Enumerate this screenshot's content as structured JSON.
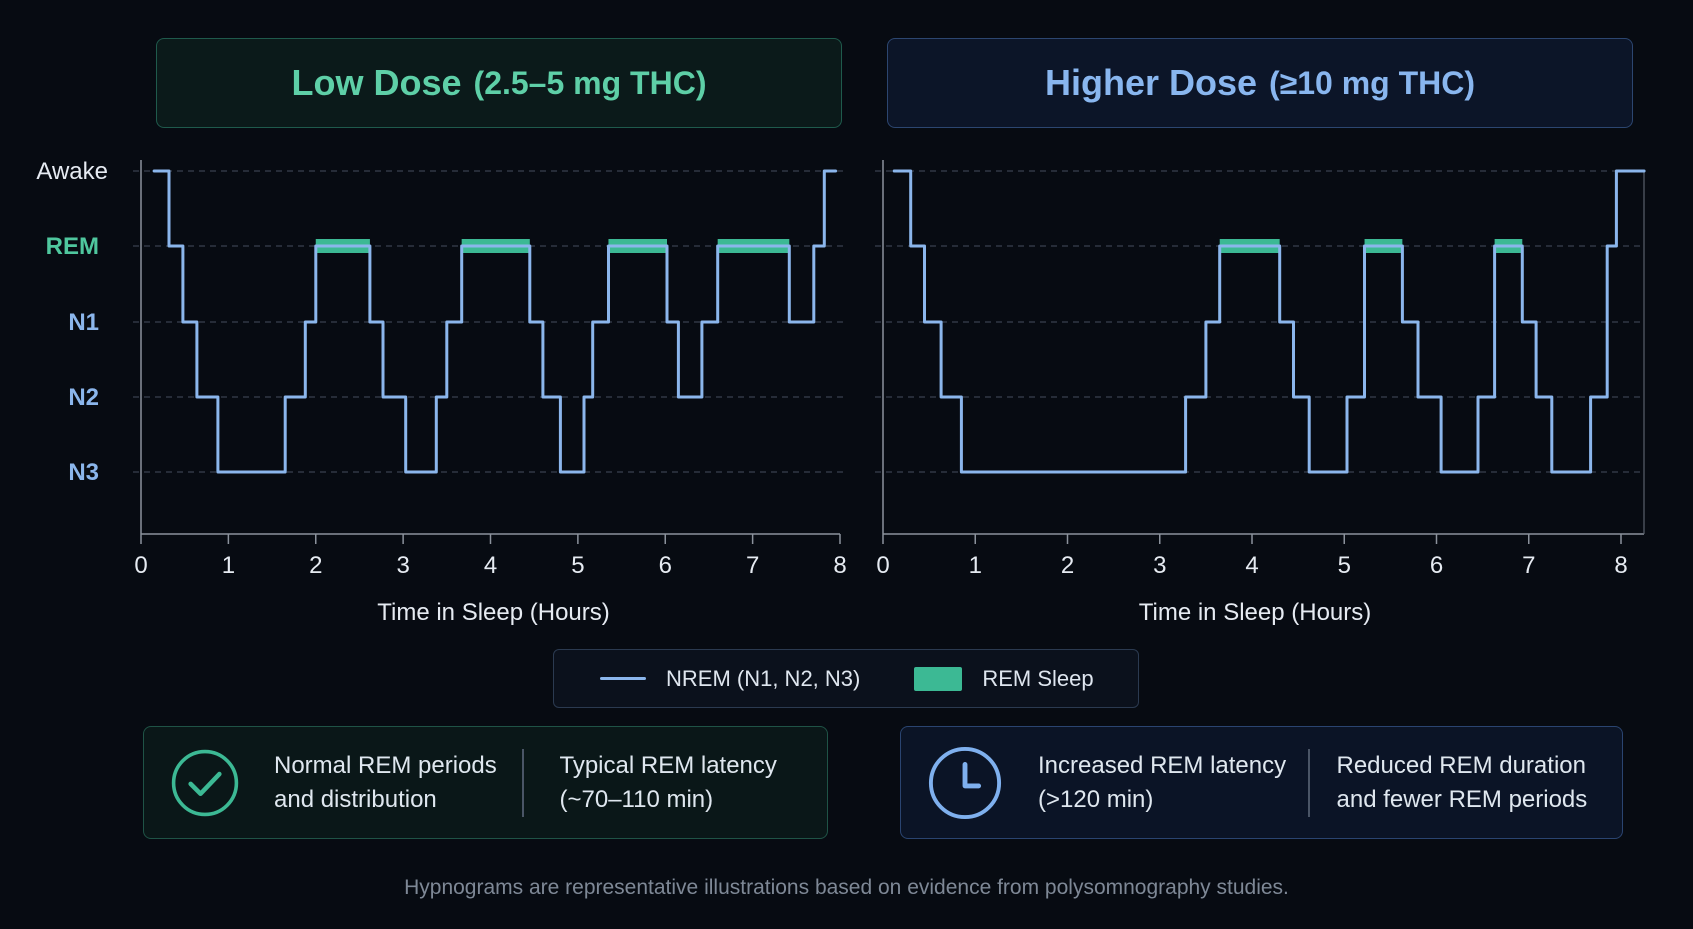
{
  "panels": [
    {
      "title": "Low Dose",
      "subtitle": "(2.5–5 mg THC)",
      "accent": "#5ecfa7"
    },
    {
      "title": "Higher Dose",
      "subtitle": "(≥10 mg THC)",
      "accent": "#89b6ef"
    }
  ],
  "legend": {
    "nrem_label": "NREM (N1, N2, N3)",
    "rem_label": "REM Sleep"
  },
  "notes": {
    "left": {
      "icon": "check-circle-icon",
      "col1": "Normal REM periods and distribution",
      "col2": "Typical REM latency (~70–110 min)"
    },
    "right": {
      "icon": "clock-icon",
      "col1": "Increased REM latency (>120 min)",
      "col2": "Reduced REM duration and fewer REM periods"
    }
  },
  "footer": "Hypnograms are representative illustrations based on evidence from polysomnography studies.",
  "colors": {
    "nrem": "#8bb6ec",
    "rem": "#3cb994",
    "rem_label": "#4fc79e",
    "stage_label": "#8bb6ec",
    "awake_label": "#e6ebf2"
  },
  "chart_data": [
    {
      "type": "line",
      "title": "Low Dose (2.5–5 mg THC)",
      "xlabel": "Time in Sleep (Hours)",
      "ylabel": "",
      "xlim": [
        0,
        8
      ],
      "xticks": [
        "0",
        "1",
        "2",
        "3",
        "4",
        "5",
        "6",
        "7",
        "8"
      ],
      "yticks": [
        "Awake",
        "REM",
        "N1",
        "N2",
        "N3"
      ],
      "grid": true,
      "series": [
        {
          "name": "NREM (N1, N2, N3)",
          "x": [
            0.15,
            0.32,
            0.32,
            0.48,
            0.48,
            0.64,
            0.64,
            0.88,
            0.88,
            1.65,
            1.65,
            1.88,
            1.88,
            2.0,
            2.0,
            2.62,
            2.62,
            2.77,
            2.77,
            3.03,
            3.03,
            3.38,
            3.38,
            3.5,
            3.5,
            3.67,
            3.67,
            4.45,
            4.45,
            4.6,
            4.6,
            4.8,
            4.8,
            5.07,
            5.07,
            5.17,
            5.17,
            5.35,
            5.35,
            6.02,
            6.02,
            6.15,
            6.15,
            6.42,
            6.42,
            6.6,
            6.6,
            7.42,
            7.42,
            7.7,
            7.7,
            7.82,
            7.82,
            7.95
          ],
          "y": [
            "Awake",
            "Awake",
            "REM",
            "REM",
            "N1",
            "N1",
            "N2",
            "N2",
            "N3",
            "N3",
            "N2",
            "N2",
            "N1",
            "N1",
            "REM",
            "REM",
            "N1",
            "N1",
            "N2",
            "N2",
            "N3",
            "N3",
            "N2",
            "N2",
            "N1",
            "N1",
            "REM",
            "REM",
            "N1",
            "N1",
            "N2",
            "N2",
            "N3",
            "N3",
            "N2",
            "N2",
            "N1",
            "N1",
            "REM",
            "REM",
            "N1",
            "N1",
            "N2",
            "N2",
            "N1",
            "N1",
            "REM",
            "REM",
            "N1",
            "N1",
            "REM",
            "REM",
            "Awake",
            "Awake"
          ]
        },
        {
          "name": "REM Sleep",
          "periods": [
            [
              2.0,
              2.62
            ],
            [
              3.67,
              4.45
            ],
            [
              5.35,
              6.02
            ],
            [
              6.6,
              7.42
            ]
          ]
        }
      ]
    },
    {
      "type": "line",
      "title": "Higher Dose (≥10 mg THC)",
      "xlabel": "Time in Sleep (Hours)",
      "ylabel": "",
      "xlim": [
        0,
        8
      ],
      "xticks": [
        "0",
        "1",
        "2",
        "3",
        "4",
        "5",
        "6",
        "7",
        "8"
      ],
      "yticks": [
        "Awake",
        "REM",
        "N1",
        "N2",
        "N3"
      ],
      "grid": true,
      "series": [
        {
          "name": "NREM (N1, N2, N3)",
          "x": [
            0.12,
            0.3,
            0.3,
            0.45,
            0.45,
            0.63,
            0.63,
            0.85,
            0.85,
            3.28,
            3.28,
            3.5,
            3.5,
            3.65,
            3.65,
            4.3,
            4.3,
            4.45,
            4.45,
            4.62,
            4.62,
            5.03,
            5.03,
            5.22,
            5.22,
            5.63,
            5.63,
            5.8,
            5.8,
            6.05,
            6.05,
            6.45,
            6.45,
            6.63,
            6.63,
            6.93,
            6.93,
            7.08,
            7.08,
            7.25,
            7.25,
            7.67,
            7.67,
            7.85,
            7.85,
            7.95,
            7.95,
            8.25
          ],
          "y": [
            "Awake",
            "Awake",
            "REM",
            "REM",
            "N1",
            "N1",
            "N2",
            "N2",
            "N3",
            "N3",
            "N2",
            "N2",
            "N1",
            "N1",
            "REM",
            "REM",
            "N1",
            "N1",
            "N2",
            "N2",
            "N3",
            "N3",
            "N2",
            "N2",
            "REM",
            "REM",
            "N1",
            "N1",
            "N2",
            "N2",
            "N3",
            "N3",
            "N2",
            "N2",
            "REM",
            "REM",
            "N1",
            "N1",
            "N2",
            "N2",
            "N3",
            "N3",
            "N2",
            "N2",
            "REM",
            "REM",
            "Awake",
            "Awake"
          ]
        },
        {
          "name": "REM Sleep",
          "periods": [
            [
              3.65,
              4.3
            ],
            [
              5.22,
              5.63
            ],
            [
              6.63,
              6.93
            ]
          ]
        }
      ]
    }
  ]
}
